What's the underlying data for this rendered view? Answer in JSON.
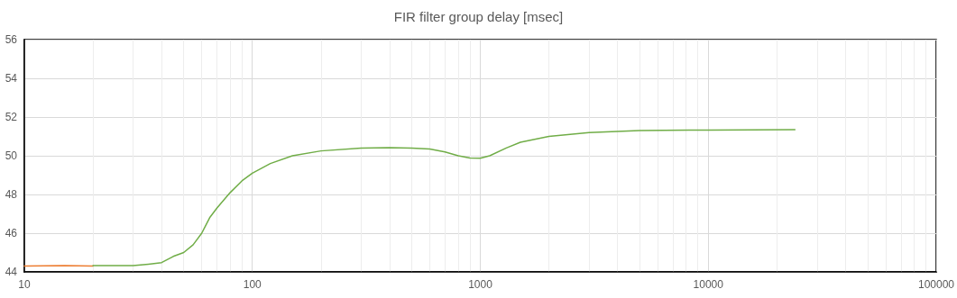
{
  "chart_data": {
    "type": "line",
    "title": "FIR filter group delay [msec]",
    "log": "x",
    "grid": true,
    "marker": "none",
    "line_style": "solid",
    "xlim": [
      10,
      100000
    ],
    "xticks": [
      10,
      100,
      1000,
      10000,
      100000
    ],
    "ylim": [
      44,
      56
    ],
    "yticks": [
      44,
      46,
      48,
      50,
      52,
      54,
      56
    ],
    "series": [
      {
        "color": "#ed7d31",
        "x": [
          10,
          15,
          20
        ],
        "values": [
          44.3,
          44.32,
          44.3
        ]
      },
      {
        "color": "#70ad47",
        "x": [
          20,
          25,
          30,
          35,
          40,
          45,
          50,
          55,
          60,
          65,
          70,
          80,
          90,
          100,
          120,
          150,
          200,
          300,
          400,
          500,
          600,
          700,
          800,
          900,
          1000,
          1100,
          1300,
          1500,
          2000,
          3000,
          5000,
          10000,
          24000
        ],
        "values": [
          44.32,
          44.33,
          44.32,
          44.4,
          44.48,
          44.8,
          45.0,
          45.4,
          46.0,
          46.8,
          47.3,
          48.1,
          48.7,
          49.1,
          49.6,
          50.0,
          50.25,
          50.4,
          50.42,
          50.4,
          50.35,
          50.2,
          50.0,
          49.88,
          49.87,
          50.0,
          50.4,
          50.7,
          51.0,
          51.2,
          51.3,
          51.33,
          51.35
        ]
      }
    ]
  }
}
